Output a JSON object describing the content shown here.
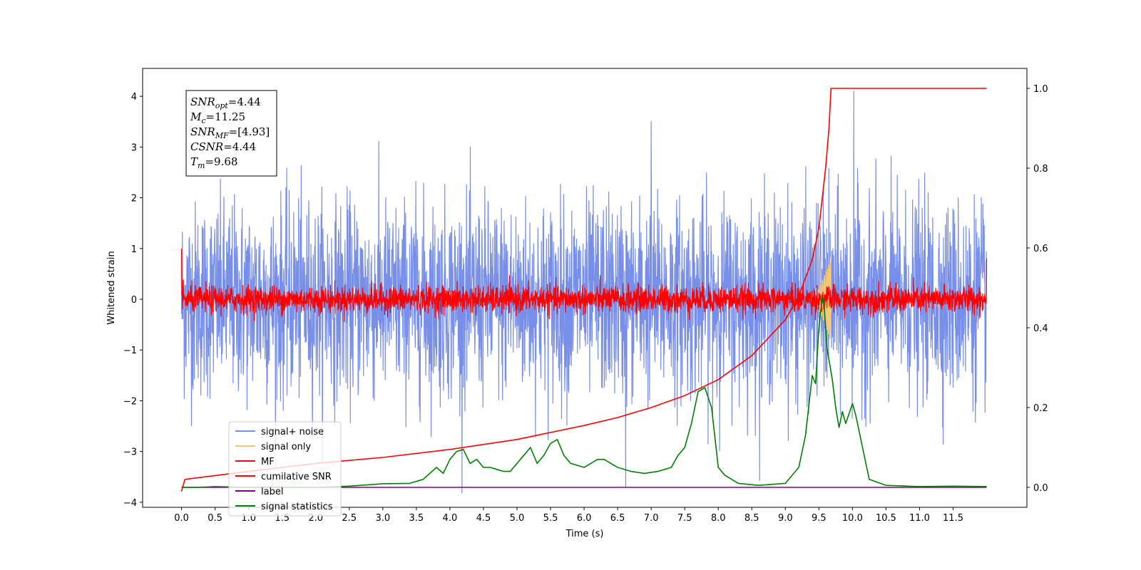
{
  "chart_data": {
    "type": "line",
    "xlabel": "Time (s)",
    "ylabel": "Whitened strain",
    "xlim": [
      -0.58,
      12.6
    ],
    "ylim": [
      -4.1,
      4.55
    ],
    "y2lim": [
      -0.05,
      1.05
    ],
    "x_ticks": [
      "0.0",
      "0.5",
      "1.0",
      "1.5",
      "2.0",
      "2.5",
      "3.0",
      "3.5",
      "4.0",
      "4.5",
      "5.0",
      "5.5",
      "6.0",
      "6.5",
      "7.0",
      "7.5",
      "8.0",
      "8.5",
      "9.0",
      "9.5",
      "10.0",
      "10.5",
      "11.0",
      "11.5"
    ],
    "y_ticks": [
      "4",
      "3",
      "2",
      "1",
      "0",
      "−1",
      "−2",
      "−3",
      "−4"
    ],
    "y2_ticks": [
      "1.0",
      "0.8",
      "0.6",
      "0.4",
      "0.2",
      "0.0"
    ],
    "legend_position": "lower left",
    "info_box": [
      {
        "sym": "SNR",
        "sub": "opt",
        "val": "=4.44"
      },
      {
        "sym": "M",
        "sub": "c",
        "val": "=11.25"
      },
      {
        "sym": "SNR",
        "sub": "MF",
        "val": "=[4.93]"
      },
      {
        "sym": "CSNR",
        "sub": "",
        "val": "=4.44"
      },
      {
        "sym": "T",
        "sub": "m",
        "val": "=9.68"
      }
    ],
    "series": [
      {
        "name": "signal+ noise",
        "color": "#778fe8",
        "axis": "left",
        "kind": "noise",
        "x_range": [
          0,
          12
        ],
        "sigma": 0.95,
        "spikes": [
          {
            "x": 10.02,
            "y": 4.1
          },
          {
            "x": 7.0,
            "y": 3.5
          },
          {
            "x": 6.62,
            "y": -3.7
          }
        ]
      },
      {
        "name": "signal only",
        "color": "#f5c971",
        "axis": "left",
        "kind": "chirp",
        "x_range": [
          9.3,
          9.68
        ],
        "peak": 0.85
      },
      {
        "name": "MF",
        "color": "#ff0000",
        "axis": "left",
        "kind": "noise",
        "x_range": [
          0,
          12
        ],
        "sigma": 0.13,
        "spikes": [
          {
            "x": 0.0,
            "y": 1.0
          },
          {
            "x": 12.0,
            "y": 0.8
          }
        ]
      },
      {
        "name": "cumilative SNR",
        "color": "#ff0000",
        "axis": "right",
        "x": [
          0.0,
          0.05,
          1.0,
          2.0,
          3.0,
          4.0,
          5.0,
          6.0,
          6.5,
          7.0,
          7.5,
          8.0,
          8.5,
          9.0,
          9.2,
          9.4,
          9.5,
          9.6,
          9.65,
          9.68,
          9.7,
          12.0
        ],
        "y": [
          -0.01,
          0.02,
          0.04,
          0.06,
          0.075,
          0.095,
          0.12,
          0.155,
          0.175,
          0.2,
          0.23,
          0.27,
          0.33,
          0.42,
          0.48,
          0.57,
          0.65,
          0.8,
          0.9,
          1.0,
          1.0,
          1.0
        ]
      },
      {
        "name": "label",
        "color": "#800080",
        "axis": "right",
        "x": [
          0.0,
          12.0
        ],
        "y": [
          0.0,
          0.0
        ]
      },
      {
        "name": "signal statistics",
        "color": "#008000",
        "axis": "right",
        "x": [
          0.0,
          0.25,
          0.5,
          1.0,
          1.5,
          2.0,
          2.5,
          3.0,
          3.4,
          3.6,
          3.8,
          3.9,
          4.0,
          4.1,
          4.2,
          4.3,
          4.4,
          4.5,
          4.6,
          4.7,
          4.8,
          4.9,
          5.0,
          5.1,
          5.2,
          5.3,
          5.4,
          5.5,
          5.6,
          5.7,
          5.8,
          6.0,
          6.2,
          6.3,
          6.5,
          6.7,
          6.9,
          7.1,
          7.3,
          7.4,
          7.5,
          7.6,
          7.7,
          7.8,
          7.9,
          8.0,
          8.1,
          8.3,
          8.6,
          9.0,
          9.2,
          9.3,
          9.4,
          9.45,
          9.5,
          9.55,
          9.58,
          9.62,
          9.7,
          9.75,
          9.8,
          9.85,
          9.9,
          10.0,
          10.05,
          10.15,
          10.25,
          10.5,
          11.0,
          11.5,
          12.0
        ],
        "y": [
          0.0,
          0.0,
          0.002,
          0.0,
          0.001,
          0.0,
          0.003,
          0.009,
          0.01,
          0.02,
          0.05,
          0.035,
          0.07,
          0.09,
          0.095,
          0.06,
          0.07,
          0.05,
          0.05,
          0.045,
          0.04,
          0.04,
          0.06,
          0.08,
          0.1,
          0.06,
          0.08,
          0.11,
          0.12,
          0.08,
          0.06,
          0.05,
          0.07,
          0.07,
          0.05,
          0.04,
          0.035,
          0.04,
          0.05,
          0.08,
          0.1,
          0.16,
          0.24,
          0.25,
          0.2,
          0.05,
          0.03,
          0.01,
          0.005,
          0.01,
          0.05,
          0.13,
          0.28,
          0.26,
          0.4,
          0.48,
          0.45,
          0.35,
          0.27,
          0.2,
          0.15,
          0.19,
          0.16,
          0.21,
          0.18,
          0.1,
          0.02,
          0.005,
          0.002,
          0.003,
          0.002
        ]
      }
    ]
  }
}
